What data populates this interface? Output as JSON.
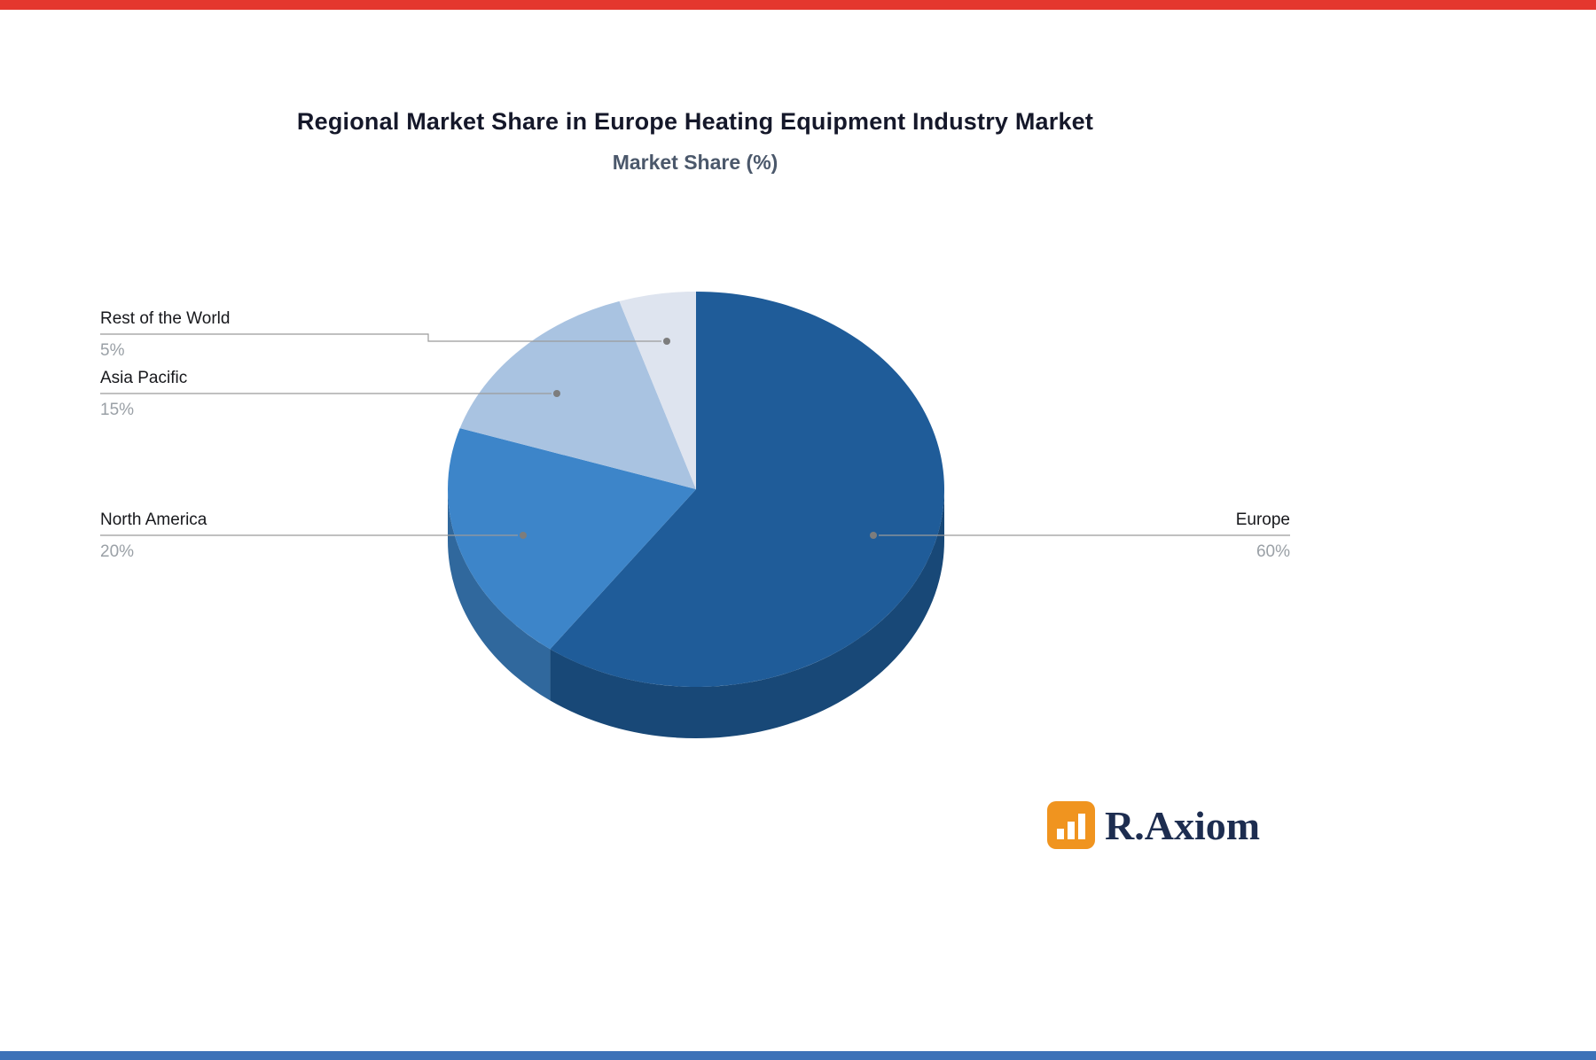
{
  "page": {
    "top_band_color": "#e4372e",
    "bottom_band_color": "#3d72b8",
    "background_color": "#ffffff"
  },
  "chart_data": {
    "type": "pie",
    "title": "Regional Market Share in Europe Heating Equipment Industry Market",
    "subtitle": "Market Share (%)",
    "unit": "%",
    "style": "3d-pie",
    "direction": "clockwise",
    "start_angle": "top",
    "legend_position": "callout-labels",
    "slices": [
      {
        "label": "Europe",
        "value": 60,
        "pct_label": "60%",
        "color": "#1f5c99"
      },
      {
        "label": "North America",
        "value": 20,
        "pct_label": "20%",
        "color": "#3d85c9"
      },
      {
        "label": "Asia Pacific",
        "value": 15,
        "pct_label": "15%",
        "color": "#a9c3e1"
      },
      {
        "label": "Rest of the World",
        "value": 5,
        "pct_label": "5%",
        "color": "#dee4ef"
      }
    ]
  },
  "logo": {
    "text": "R.Axiom",
    "icon": "bar-chart-icon",
    "icon_bg_color": "#f0941f",
    "text_color": "#1d2d50"
  }
}
